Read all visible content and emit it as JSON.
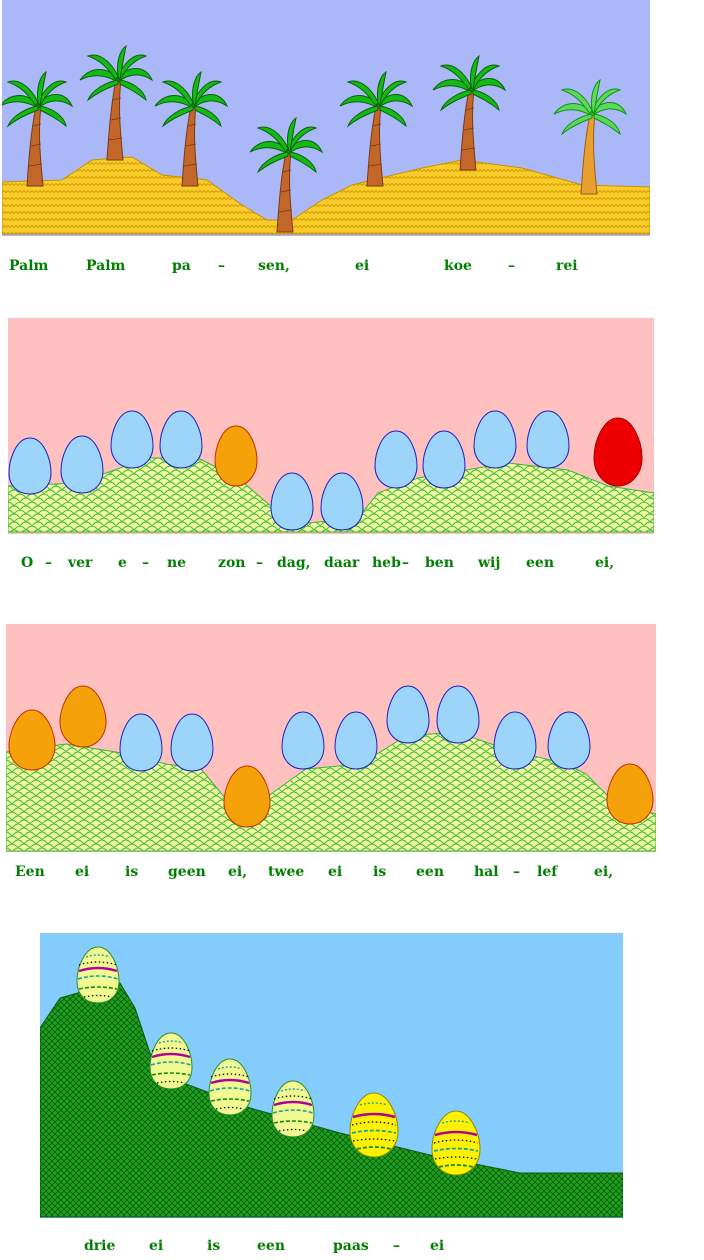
{
  "lyrics": {
    "line1": [
      "Palm",
      "Palm",
      "pa",
      "–",
      "sen,",
      "ei",
      "koe",
      "–",
      "rei"
    ],
    "line2": [
      "O",
      "–",
      "ver",
      "e",
      "–",
      "ne",
      "zon",
      "–",
      "dag,",
      "daar",
      "heb",
      "–",
      "ben",
      "wij",
      "een",
      "ei,"
    ],
    "line3": [
      "Een",
      "ei",
      "is",
      "geen",
      "ei,",
      "twee",
      "ei",
      "is",
      "een",
      "hal",
      "–",
      "lef",
      "ei,"
    ],
    "line4": [
      "drie",
      "ei",
      "is",
      "een",
      "paas",
      "–",
      "ei"
    ]
  },
  "colors": {
    "sky_blue": "#aab8f8",
    "sand": "#f8cc2a",
    "sand_wave": "#d89a00",
    "palm_trunk": "#c2662a",
    "palm_trunk_light": "#e8a030",
    "palm_leaf": "#15b915",
    "palm_leaf_light": "#5cd85c",
    "pink_sky": "#ffc0c0",
    "grass_light": "#f0f8a0",
    "grass_line": "#38b838",
    "egg_blue": "#9cd4fa",
    "egg_orange": "#f5a20a",
    "egg_red": "#ee0000",
    "light_sky": "#84ccfc",
    "dark_grass": "#1ea01e",
    "lyric_green": "#008000"
  },
  "icons": [
    "palm-tree-icon",
    "egg-icon",
    "easter-egg-icon"
  ]
}
